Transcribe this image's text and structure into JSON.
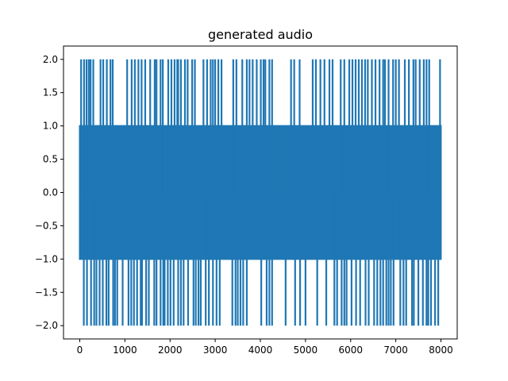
{
  "chart_data": {
    "type": "line",
    "title": "generated audio",
    "xlabel": "",
    "ylabel": "",
    "xlim": [
      -360,
      8360
    ],
    "ylim": [
      -2.2,
      2.2
    ],
    "xticks": [
      0,
      1000,
      2000,
      3000,
      4000,
      5000,
      6000,
      7000,
      8000
    ],
    "yticks": [
      -2.0,
      -1.5,
      -1.0,
      -0.5,
      0.0,
      0.5,
      1.0,
      1.5,
      2.0
    ],
    "grid": false,
    "legend": "none",
    "series": [
      {
        "color": "#1f77b4",
        "x_range": [
          0,
          7999
        ],
        "main_band": [
          -1.0,
          1.0
        ],
        "positive_spike_value": 2.0,
        "negative_spike_value": -2.0,
        "positive_spike_x": [
          30,
          95,
          150,
          200,
          240,
          300,
          460,
          520,
          600,
          680,
          730,
          1050,
          1150,
          1220,
          1300,
          1370,
          1450,
          1560,
          1660,
          1700,
          1790,
          1840,
          1960,
          2030,
          2100,
          2160,
          2180,
          2240,
          2330,
          2390,
          2490,
          2550,
          2740,
          2820,
          2900,
          2950,
          3000,
          3070,
          3140,
          3400,
          3470,
          3600,
          3700,
          3760,
          3830,
          3920,
          4010,
          4070,
          4110,
          4200,
          4260,
          4680,
          4750,
          4870,
          5160,
          5230,
          5330,
          5420,
          5530,
          5600,
          5780,
          5860,
          5970,
          6040,
          6110,
          6180,
          6250,
          6320,
          6380,
          6470,
          6550,
          6640,
          6720,
          6760,
          6840,
          6940,
          7000,
          7070,
          7200,
          7290,
          7390,
          7440,
          7530,
          7620,
          7680,
          7740,
          7980
        ],
        "negative_spike_x": [
          90,
          160,
          250,
          320,
          370,
          440,
          510,
          590,
          640,
          740,
          780,
          830,
          950,
          1080,
          1140,
          1200,
          1270,
          1350,
          1380,
          1470,
          1530,
          1650,
          1700,
          1790,
          1850,
          1880,
          1950,
          2010,
          2080,
          2180,
          2240,
          2300,
          2400,
          2520,
          2570,
          2630,
          2680,
          2790,
          2860,
          2950,
          3030,
          3100,
          3380,
          3450,
          3500,
          3560,
          3620,
          3700,
          4020,
          4140,
          4200,
          4260,
          4560,
          4770,
          4880,
          5000,
          5260,
          5460,
          5640,
          5700,
          5800,
          5860,
          5910,
          6020,
          6120,
          6210,
          6330,
          6400,
          6520,
          6590,
          6660,
          6720,
          6790,
          6840,
          6890,
          6950,
          7100,
          7170,
          7230,
          7360,
          7400,
          7500,
          7600,
          7680,
          7720,
          7780,
          7870,
          7940
        ]
      }
    ]
  }
}
